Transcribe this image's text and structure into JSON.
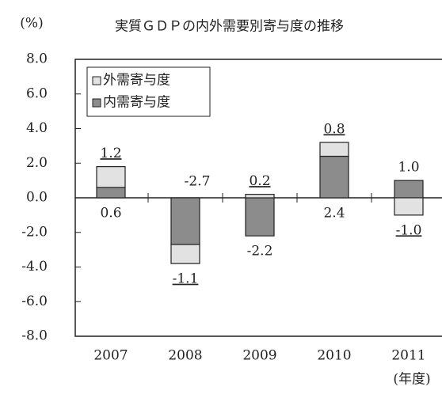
{
  "chart_data": {
    "type": "bar",
    "stacked": true,
    "title": "実質ＧＤＰの内外需要別寄与度の推移",
    "y_label": "(%)",
    "x_label": "(年度)",
    "categories": [
      "2007",
      "2008",
      "2009",
      "2010",
      "2011"
    ],
    "series": [
      {
        "name": "外需寄与度",
        "color": "#e2e2e2",
        "values": [
          1.2,
          -1.1,
          0.2,
          0.8,
          -1.0
        ],
        "value_labels": [
          "1.2",
          "-1.1",
          "0.2",
          "0.8",
          "-1.0"
        ]
      },
      {
        "name": "内需寄与度",
        "color": "#8c8c8c",
        "values": [
          0.6,
          -2.7,
          -2.2,
          2.4,
          1.0
        ],
        "value_labels": [
          "0.6",
          "-2.7",
          "-2.2",
          "2.4",
          "1.0"
        ]
      }
    ],
    "ylim": [
      -8,
      8
    ],
    "yticks": [
      {
        "value": 8,
        "label": "8.0"
      },
      {
        "value": 6,
        "label": "6.0"
      },
      {
        "value": 4,
        "label": "4.0"
      },
      {
        "value": 2,
        "label": "2.0"
      },
      {
        "value": 0,
        "label": "0.0"
      },
      {
        "value": -2,
        "label": "-2.0"
      },
      {
        "value": -4,
        "label": "-4.0"
      },
      {
        "value": -6,
        "label": "-6.0"
      },
      {
        "value": -8,
        "label": "-8.0"
      }
    ],
    "legend": "upper left"
  }
}
